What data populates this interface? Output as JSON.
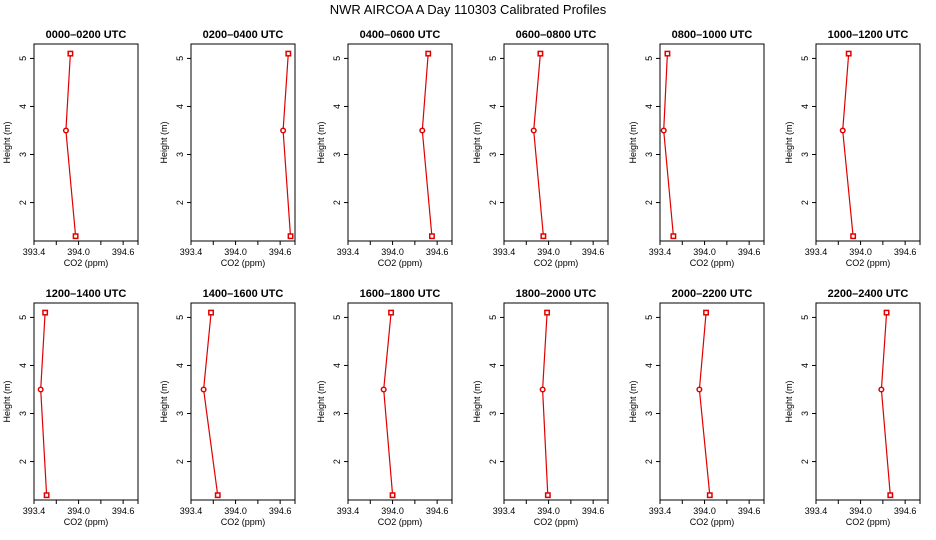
{
  "figure": {
    "title": "NWR AIRCOA A  Day 110303  Calibrated Profiles"
  },
  "colors": {
    "series": "#e00000",
    "frame": "#000000",
    "background": "#ffffff"
  },
  "chart_data": [
    {
      "type": "line",
      "title": "0000–0200 UTC",
      "xlabel": "CO2 (ppm)",
      "ylabel": "Height (m)",
      "xlim": [
        393.4,
        394.8
      ],
      "ylim": [
        1.2,
        5.3
      ],
      "xticks": [
        "393.4",
        "394.0",
        "394.6"
      ],
      "yticks": [
        "2",
        "3",
        "4",
        "5"
      ],
      "x": [
        393.96,
        393.83,
        393.89
      ],
      "y": [
        1.3,
        3.5,
        5.1
      ]
    },
    {
      "type": "line",
      "title": "0200–0400 UTC",
      "xlabel": "CO2 (ppm)",
      "ylabel": "Height (m)",
      "xlim": [
        393.4,
        394.8
      ],
      "ylim": [
        1.2,
        5.3
      ],
      "xticks": [
        "393.4",
        "394.0",
        "394.6"
      ],
      "yticks": [
        "2",
        "3",
        "4",
        "5"
      ],
      "x": [
        394.74,
        394.64,
        394.71
      ],
      "y": [
        1.3,
        3.5,
        5.1
      ]
    },
    {
      "type": "line",
      "title": "0400–0600 UTC",
      "xlabel": "CO2 (ppm)",
      "ylabel": "Height (m)",
      "xlim": [
        393.4,
        394.8
      ],
      "ylim": [
        1.2,
        5.3
      ],
      "xticks": [
        "393.4",
        "394.0",
        "394.6"
      ],
      "yticks": [
        "2",
        "3",
        "4",
        "5"
      ],
      "x": [
        394.53,
        394.4,
        394.48
      ],
      "y": [
        1.3,
        3.5,
        5.1
      ]
    },
    {
      "type": "line",
      "title": "0600–0800 UTC",
      "xlabel": "CO2 (ppm)",
      "ylabel": "Height (m)",
      "xlim": [
        393.4,
        394.8
      ],
      "ylim": [
        1.2,
        5.3
      ],
      "xticks": [
        "393.4",
        "394.0",
        "394.6"
      ],
      "yticks": [
        "2",
        "3",
        "4",
        "5"
      ],
      "x": [
        393.93,
        393.8,
        393.89
      ],
      "y": [
        1.3,
        3.5,
        5.1
      ]
    },
    {
      "type": "line",
      "title": "0800–1000 UTC",
      "xlabel": "CO2 (ppm)",
      "ylabel": "Height (m)",
      "xlim": [
        393.4,
        394.8
      ],
      "ylim": [
        1.2,
        5.3
      ],
      "xticks": [
        "393.4",
        "394.0",
        "394.6"
      ],
      "yticks": [
        "2",
        "3",
        "4",
        "5"
      ],
      "x": [
        393.58,
        393.45,
        393.5
      ],
      "y": [
        1.3,
        3.5,
        5.1
      ]
    },
    {
      "type": "line",
      "title": "1000–1200 UTC",
      "xlabel": "CO2 (ppm)",
      "ylabel": "Height (m)",
      "xlim": [
        393.4,
        394.8
      ],
      "ylim": [
        1.2,
        5.3
      ],
      "xticks": [
        "393.4",
        "394.0",
        "394.6"
      ],
      "yticks": [
        "2",
        "3",
        "4",
        "5"
      ],
      "x": [
        393.9,
        393.76,
        393.84
      ],
      "y": [
        1.3,
        3.5,
        5.1
      ]
    },
    {
      "type": "line",
      "title": "1200–1400 UTC",
      "xlabel": "CO2 (ppm)",
      "ylabel": "Height (m)",
      "xlim": [
        393.4,
        394.8
      ],
      "ylim": [
        1.2,
        5.3
      ],
      "xticks": [
        "393.4",
        "394.0",
        "394.6"
      ],
      "yticks": [
        "2",
        "3",
        "4",
        "5"
      ],
      "x": [
        393.57,
        393.49,
        393.55
      ],
      "y": [
        1.3,
        3.5,
        5.1
      ]
    },
    {
      "type": "line",
      "title": "1400–1600 UTC",
      "xlabel": "CO2 (ppm)",
      "ylabel": "Height (m)",
      "xlim": [
        393.4,
        394.8
      ],
      "ylim": [
        1.2,
        5.3
      ],
      "xticks": [
        "393.4",
        "394.0",
        "394.6"
      ],
      "yticks": [
        "2",
        "3",
        "4",
        "5"
      ],
      "x": [
        393.76,
        393.57,
        393.67
      ],
      "y": [
        1.3,
        3.5,
        5.1
      ]
    },
    {
      "type": "line",
      "title": "1600–1800 UTC",
      "xlabel": "CO2 (ppm)",
      "ylabel": "Height (m)",
      "xlim": [
        393.4,
        394.8
      ],
      "ylim": [
        1.2,
        5.3
      ],
      "xticks": [
        "393.4",
        "394.0",
        "394.6"
      ],
      "yticks": [
        "2",
        "3",
        "4",
        "5"
      ],
      "x": [
        394.0,
        393.88,
        393.98
      ],
      "y": [
        1.3,
        3.5,
        5.1
      ]
    },
    {
      "type": "line",
      "title": "1800–2000 UTC",
      "xlabel": "CO2 (ppm)",
      "ylabel": "Height (m)",
      "xlim": [
        393.4,
        394.8
      ],
      "ylim": [
        1.2,
        5.3
      ],
      "xticks": [
        "393.4",
        "394.0",
        "394.6"
      ],
      "yticks": [
        "2",
        "3",
        "4",
        "5"
      ],
      "x": [
        393.99,
        393.92,
        393.98
      ],
      "y": [
        1.3,
        3.5,
        5.1
      ]
    },
    {
      "type": "line",
      "title": "2000–2200 UTC",
      "xlabel": "CO2 (ppm)",
      "ylabel": "Height (m)",
      "xlim": [
        393.4,
        394.8
      ],
      "ylim": [
        1.2,
        5.3
      ],
      "xticks": [
        "393.4",
        "394.0",
        "394.6"
      ],
      "yticks": [
        "2",
        "3",
        "4",
        "5"
      ],
      "x": [
        394.07,
        393.93,
        394.02
      ],
      "y": [
        1.3,
        3.5,
        5.1
      ]
    },
    {
      "type": "line",
      "title": "2200–2400 UTC",
      "xlabel": "CO2 (ppm)",
      "ylabel": "Height (m)",
      "xlim": [
        393.4,
        394.8
      ],
      "ylim": [
        1.2,
        5.3
      ],
      "xticks": [
        "393.4",
        "394.0",
        "394.6"
      ],
      "yticks": [
        "2",
        "3",
        "4",
        "5"
      ],
      "x": [
        394.4,
        394.28,
        394.35
      ],
      "y": [
        1.3,
        3.5,
        5.1
      ]
    }
  ]
}
